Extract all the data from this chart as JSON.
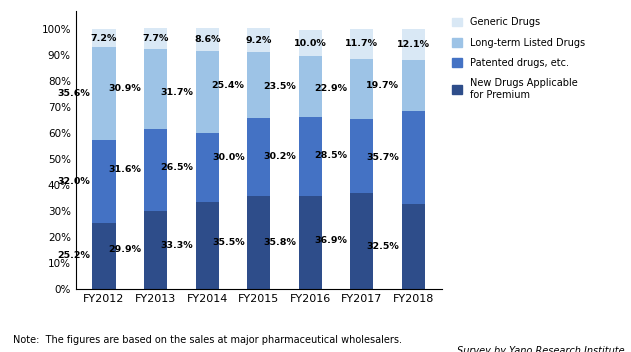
{
  "years": [
    "FY2012",
    "FY2013",
    "FY2014",
    "FY2015",
    "FY2016",
    "FY2017",
    "FY2018"
  ],
  "new_drugs": [
    25.2,
    29.9,
    33.3,
    35.5,
    35.8,
    36.9,
    32.5
  ],
  "patented": [
    32.0,
    31.6,
    26.5,
    30.0,
    30.2,
    28.5,
    35.7
  ],
  "long_term": [
    35.6,
    30.9,
    31.7,
    25.4,
    23.5,
    22.9,
    19.7
  ],
  "generic": [
    7.2,
    7.7,
    8.6,
    9.2,
    10.0,
    11.7,
    12.1
  ],
  "colors": {
    "new_drugs": "#2E4D8A",
    "patented": "#4472C4",
    "long_term": "#9DC3E6",
    "generic": "#D9E8F5"
  },
  "legend_labels": [
    "Generic Drugs",
    "Long-term Listed Drugs",
    "Patented drugs, etc.",
    "New Drugs Applicable\nfor Premium"
  ],
  "note": "Note:  The figures are based on the sales at major pharmaceutical wholesalers.",
  "survey": "Survey by Yano Research Institute"
}
